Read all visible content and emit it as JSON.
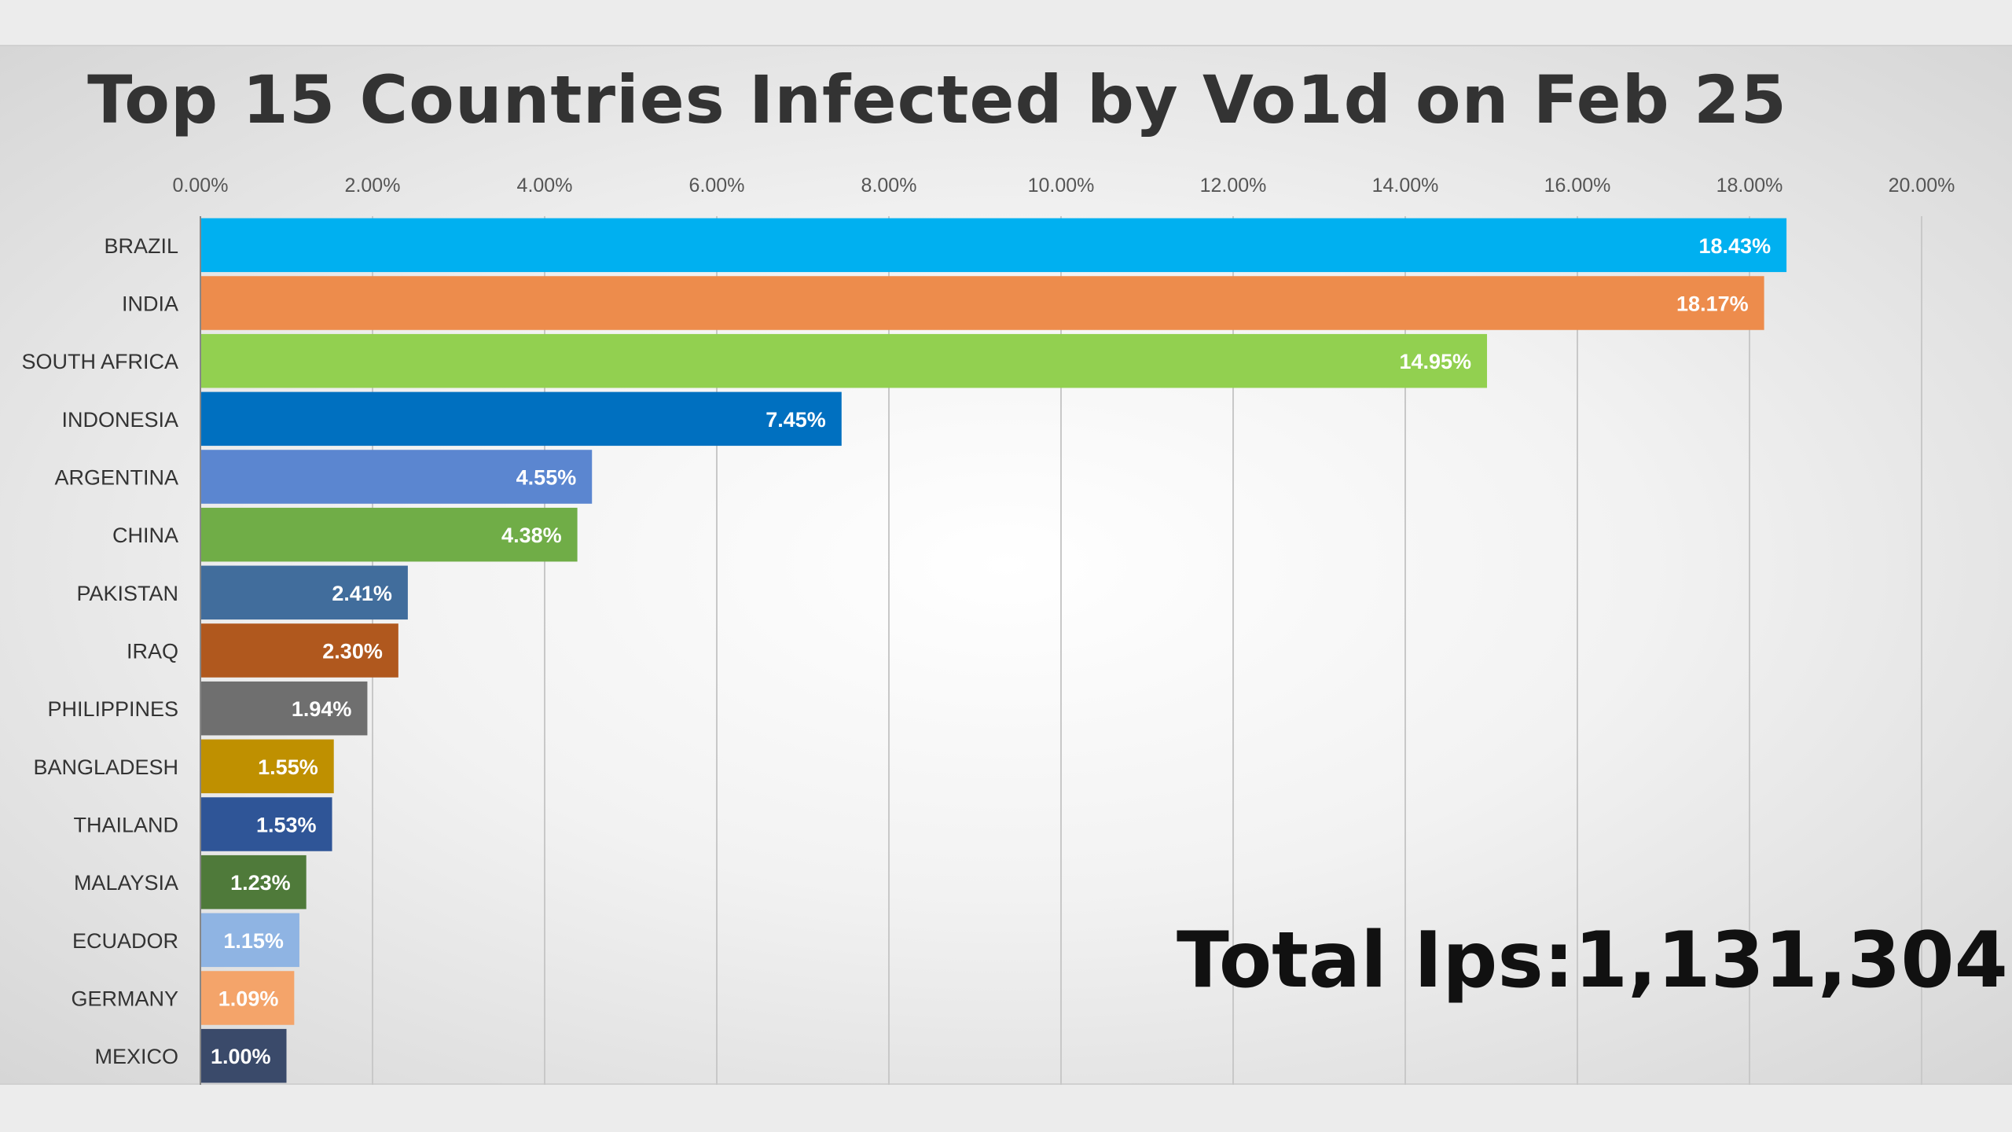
{
  "chart_data": {
    "type": "bar",
    "orientation": "horizontal",
    "title": "Top 15 Countries Infected by Vo1d on Feb 25",
    "xlim": [
      0,
      20
    ],
    "xticks": [
      "0.00%",
      "2.00%",
      "4.00%",
      "6.00%",
      "8.00%",
      "10.00%",
      "12.00%",
      "14.00%",
      "16.00%",
      "18.00%",
      "20.00%"
    ],
    "grid": true,
    "categories": [
      "BRAZIL",
      "INDIA",
      "SOUTH AFRICA",
      "INDONESIA",
      "ARGENTINA",
      "CHINA",
      "PAKISTAN",
      "IRAQ",
      "PHILIPPINES",
      "BANGLADESH",
      "THAILAND",
      "MALAYSIA",
      "ECUADOR",
      "GERMANY",
      "MEXICO"
    ],
    "values": [
      18.43,
      18.17,
      14.95,
      7.45,
      4.55,
      4.38,
      2.41,
      2.3,
      1.94,
      1.55,
      1.53,
      1.23,
      1.15,
      1.09,
      1.0
    ],
    "data_labels": [
      "18.43%",
      "18.17%",
      "14.95%",
      "7.45%",
      "4.55%",
      "4.38%",
      "2.41%",
      "2.30%",
      "1.94%",
      "1.55%",
      "1.53%",
      "1.23%",
      "1.15%",
      "1.09%",
      "1.00%"
    ],
    "colors": [
      "#00b0f0",
      "#ed8c4c",
      "#92d050",
      "#0070c0",
      "#5b86d0",
      "#70ad47",
      "#416d9c",
      "#b0581e",
      "#6f6f6f",
      "#bf9000",
      "#2f5597",
      "#4f7a3a",
      "#8fb4e3",
      "#f4a46a",
      "#3a4a6a"
    ]
  },
  "annotation": {
    "total_ips": "Total Ips:1,131,304"
  }
}
